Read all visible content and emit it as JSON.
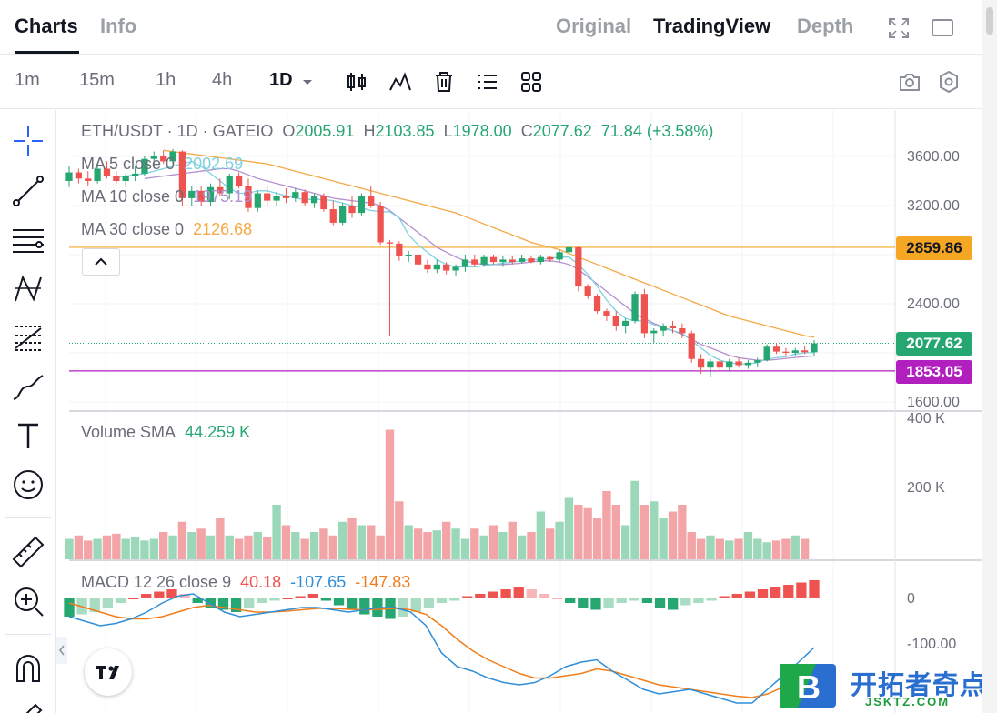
{
  "tabs": {
    "charts": "Charts",
    "info": "Info"
  },
  "views": {
    "original": "Original",
    "tradingview": "TradingView",
    "depth": "Depth"
  },
  "timeframes": [
    "1m",
    "15m",
    "1h",
    "4h",
    "1D"
  ],
  "active_timeframe": "1D",
  "legend": {
    "symbol": "ETH/USDT · 1D · GATEIO",
    "o_label": "O",
    "o": "2005.91",
    "h_label": "H",
    "h": "2103.85",
    "l_label": "L",
    "l": "1978.00",
    "c_label": "C",
    "c": "2077.62",
    "change": "71.84 (+3.58%)",
    "ma5_label": "MA 5 close 0",
    "ma5": "2002.69",
    "ma10_label": "MA 10 close 0",
    "ma10": "1975.19",
    "ma30_label": "MA 30 close 0",
    "ma30": "2126.68",
    "vol_label": "Volume SMA",
    "vol": "44.259 K",
    "macd_label": "MACD 12 26 close 9",
    "macd_hist": "40.18",
    "macd_line": "-107.65",
    "macd_signal": "-147.83"
  },
  "price_axis": [
    "3600.00",
    "3200.00",
    "2400.00",
    "1600.00"
  ],
  "price_labels": {
    "hline_top": "2859.86",
    "last": "2077.62",
    "hline_bottom": "1853.05"
  },
  "volume_axis": [
    "400 K",
    "200 K"
  ],
  "macd_axis": [
    "0",
    "-100.00"
  ],
  "watermark": {
    "title": "开拓者奇点",
    "sub": "JSKTZ.COM",
    "logo_letter": "B"
  },
  "colors": {
    "up": "#26a671",
    "down": "#ef5350",
    "ma5": "#7fd1e0",
    "ma10": "#b48fd1",
    "ma30": "#f5a845",
    "hline_top": "#f5a623",
    "hline_bottom": "#b21fbf",
    "last": "#26a671",
    "macd": "#2f8ed8",
    "signal": "#f07d1a"
  },
  "chart_data": {
    "type": "candlestick",
    "price_range": [
      1600,
      3600
    ],
    "candles": [
      [
        3400,
        3520,
        3350,
        3470
      ],
      [
        3470,
        3500,
        3380,
        3420
      ],
      [
        3420,
        3480,
        3360,
        3400
      ],
      [
        3400,
        3520,
        3380,
        3500
      ],
      [
        3500,
        3560,
        3420,
        3440
      ],
      [
        3440,
        3480,
        3380,
        3400
      ],
      [
        3400,
        3460,
        3350,
        3440
      ],
      [
        3440,
        3520,
        3400,
        3460
      ],
      [
        3460,
        3600,
        3440,
        3580
      ],
      [
        3580,
        3640,
        3520,
        3600
      ],
      [
        3600,
        3650,
        3540,
        3560
      ],
      [
        3560,
        3660,
        3520,
        3640
      ],
      [
        3640,
        3650,
        3200,
        3260
      ],
      [
        3260,
        3360,
        3200,
        3320
      ],
      [
        3320,
        3360,
        3200,
        3230
      ],
      [
        3230,
        3380,
        3200,
        3350
      ],
      [
        3350,
        3420,
        3280,
        3300
      ],
      [
        3300,
        3460,
        3250,
        3440
      ],
      [
        3440,
        3470,
        3340,
        3360
      ],
      [
        3360,
        3420,
        3150,
        3180
      ],
      [
        3180,
        3320,
        3150,
        3300
      ],
      [
        3300,
        3360,
        3200,
        3240
      ],
      [
        3240,
        3310,
        3200,
        3280
      ],
      [
        3280,
        3340,
        3220,
        3260
      ],
      [
        3260,
        3340,
        3230,
        3310
      ],
      [
        3310,
        3330,
        3200,
        3220
      ],
      [
        3220,
        3300,
        3180,
        3280
      ],
      [
        3280,
        3300,
        3150,
        3170
      ],
      [
        3170,
        3240,
        3040,
        3060
      ],
      [
        3060,
        3220,
        3040,
        3200
      ],
      [
        3200,
        3280,
        3100,
        3140
      ],
      [
        3140,
        3300,
        3120,
        3280
      ],
      [
        3280,
        3360,
        3180,
        3200
      ],
      [
        3200,
        3230,
        2880,
        2900
      ],
      [
        2900,
        2920,
        2140,
        2890
      ],
      [
        2890,
        2910,
        2750,
        2790
      ],
      [
        2790,
        2830,
        2740,
        2800
      ],
      [
        2800,
        2820,
        2700,
        2720
      ],
      [
        2720,
        2760,
        2650,
        2680
      ],
      [
        2680,
        2760,
        2650,
        2720
      ],
      [
        2720,
        2740,
        2640,
        2670
      ],
      [
        2670,
        2720,
        2630,
        2700
      ],
      [
        2700,
        2800,
        2660,
        2760
      ],
      [
        2760,
        2800,
        2700,
        2720
      ],
      [
        2720,
        2800,
        2700,
        2780
      ],
      [
        2780,
        2800,
        2720,
        2740
      ],
      [
        2740,
        2790,
        2700,
        2760
      ],
      [
        2760,
        2790,
        2720,
        2740
      ],
      [
        2740,
        2800,
        2730,
        2770
      ],
      [
        2770,
        2790,
        2730,
        2740
      ],
      [
        2740,
        2800,
        2720,
        2780
      ],
      [
        2780,
        2790,
        2740,
        2760
      ],
      [
        2760,
        2840,
        2740,
        2820
      ],
      [
        2820,
        2880,
        2800,
        2860
      ],
      [
        2860,
        2870,
        2500,
        2540
      ],
      [
        2540,
        2560,
        2440,
        2460
      ],
      [
        2460,
        2480,
        2320,
        2340
      ],
      [
        2340,
        2360,
        2260,
        2300
      ],
      [
        2300,
        2340,
        2180,
        2220
      ],
      [
        2220,
        2280,
        2160,
        2260
      ],
      [
        2260,
        2500,
        2240,
        2480
      ],
      [
        2480,
        2520,
        2120,
        2160
      ],
      [
        2160,
        2200,
        2080,
        2180
      ],
      [
        2180,
        2240,
        2140,
        2220
      ],
      [
        2220,
        2260,
        2160,
        2200
      ],
      [
        2200,
        2240,
        2120,
        2160
      ],
      [
        2160,
        2180,
        1920,
        1950
      ],
      [
        1950,
        1990,
        1830,
        1880
      ],
      [
        1880,
        1950,
        1800,
        1930
      ],
      [
        1930,
        1960,
        1860,
        1880
      ],
      [
        1880,
        1950,
        1850,
        1930
      ],
      [
        1930,
        1960,
        1880,
        1900
      ],
      [
        1900,
        1940,
        1870,
        1920
      ],
      [
        1920,
        1960,
        1890,
        1940
      ],
      [
        1940,
        2070,
        1930,
        2050
      ],
      [
        2050,
        2080,
        1990,
        2010
      ],
      [
        2010,
        2040,
        1970,
        2000
      ],
      [
        2000,
        2040,
        1980,
        2020
      ],
      [
        2020,
        2060,
        1990,
        2005
      ],
      [
        2005,
        2104,
        1978,
        2077
      ]
    ],
    "ma5": [
      3430,
      3440,
      3450,
      3460,
      3480,
      3500,
      3520,
      3540,
      3560,
      3520,
      3460,
      3400,
      3340,
      3300,
      3300,
      3320,
      3320,
      3300,
      3280,
      3260,
      3250,
      3250,
      3250,
      3240,
      3220,
      3200,
      3180,
      3160,
      3150,
      3150,
      3100,
      2960,
      2880,
      2820,
      2760,
      2720,
      2700,
      2700,
      2700,
      2710,
      2720,
      2730,
      2740,
      2750,
      2760,
      2760,
      2770,
      2780,
      2780,
      2720,
      2640,
      2540,
      2430,
      2340,
      2280,
      2260,
      2260,
      2230,
      2200,
      2180,
      2160,
      2100,
      2040,
      1980,
      1940,
      1920,
      1910,
      1910,
      1920,
      1950,
      1960,
      1970,
      1990,
      2000,
      2002
    ],
    "ma10": [
      3420,
      3430,
      3440,
      3450,
      3460,
      3470,
      3480,
      3490,
      3500,
      3500,
      3480,
      3450,
      3420,
      3400,
      3380,
      3360,
      3340,
      3320,
      3300,
      3280,
      3260,
      3250,
      3240,
      3230,
      3220,
      3200,
      3160,
      3100,
      3040,
      2980,
      2920,
      2860,
      2820,
      2780,
      2750,
      2730,
      2720,
      2720,
      2720,
      2725,
      2730,
      2740,
      2750,
      2750,
      2740,
      2720,
      2680,
      2620,
      2560,
      2500,
      2440,
      2380,
      2320,
      2280,
      2240,
      2210,
      2180,
      2150,
      2110,
      2070,
      2040,
      2010,
      1980,
      1960,
      1950,
      1940,
      1940,
      1945,
      1955,
      1962,
      1970,
      1975
    ],
    "ma30": [
      3650,
      3640,
      3630,
      3620,
      3610,
      3600,
      3590,
      3580,
      3570,
      3560,
      3550,
      3540,
      3520,
      3500,
      3480,
      3460,
      3440,
      3420,
      3400,
      3380,
      3360,
      3340,
      3320,
      3300,
      3280,
      3260,
      3240,
      3220,
      3200,
      3180,
      3160,
      3140,
      3110,
      3080,
      3050,
      3020,
      2990,
      2960,
      2930,
      2900,
      2880,
      2860,
      2840,
      2810,
      2780,
      2750,
      2720,
      2690,
      2660,
      2630,
      2600,
      2570,
      2540,
      2510,
      2480,
      2450,
      2420,
      2390,
      2360,
      2330,
      2300,
      2280,
      2260,
      2240,
      2220,
      2200,
      2180,
      2160,
      2140,
      2127
    ],
    "volume": [
      60,
      70,
      55,
      60,
      70,
      75,
      60,
      65,
      55,
      60,
      80,
      70,
      110,
      80,
      90,
      70,
      120,
      70,
      60,
      70,
      80,
      65,
      160,
      100,
      80,
      60,
      80,
      90,
      70,
      110,
      120,
      100,
      100,
      70,
      380,
      170,
      100,
      90,
      80,
      85,
      110,
      90,
      60,
      90,
      70,
      100,
      80,
      110,
      70,
      80,
      140,
      90,
      110,
      180,
      160,
      150,
      120,
      200,
      160,
      100,
      230,
      160,
      170,
      120,
      140,
      160,
      80,
      60,
      70,
      60,
      55,
      60,
      80,
      60,
      50,
      55,
      60,
      70,
      60
    ],
    "macd_hist": [
      -40,
      -35,
      -30,
      -20,
      -10,
      0,
      10,
      15,
      20,
      10,
      -10,
      -20,
      -25,
      -30,
      -20,
      -10,
      -5,
      0,
      5,
      10,
      -5,
      -15,
      -25,
      -35,
      -40,
      -45,
      -40,
      -30,
      -20,
      -10,
      -5,
      5,
      10,
      15,
      20,
      25,
      20,
      10,
      0,
      -10,
      -20,
      -25,
      -20,
      -10,
      -5,
      -10,
      -20,
      -25,
      -15,
      -10,
      -5,
      5,
      10,
      15,
      20,
      25,
      30,
      35,
      40
    ],
    "macd": [
      -40,
      -50,
      -60,
      -55,
      -45,
      -30,
      -10,
      5,
      10,
      -10,
      -30,
      -40,
      -35,
      -30,
      -25,
      -20,
      -20,
      -25,
      -30,
      -25,
      -20,
      -20,
      -30,
      -60,
      -120,
      -150,
      -160,
      -175,
      -185,
      -190,
      -185,
      -170,
      -150,
      -140,
      -135,
      -160,
      -180,
      -200,
      -210,
      -205,
      -200,
      -210,
      -220,
      -230,
      -230,
      -200,
      -170,
      -140,
      -108
    ],
    "signal": [
      -10,
      -20,
      -30,
      -40,
      -45,
      -45,
      -40,
      -30,
      -20,
      -15,
      -20,
      -25,
      -30,
      -30,
      -28,
      -25,
      -22,
      -22,
      -24,
      -25,
      -24,
      -22,
      -25,
      -35,
      -60,
      -90,
      -115,
      -135,
      -150,
      -165,
      -175,
      -175,
      -170,
      -165,
      -155,
      -160,
      -170,
      -180,
      -190,
      -195,
      -200,
      -205,
      -210,
      -215,
      -218,
      -210,
      -195,
      -175,
      -148
    ]
  }
}
